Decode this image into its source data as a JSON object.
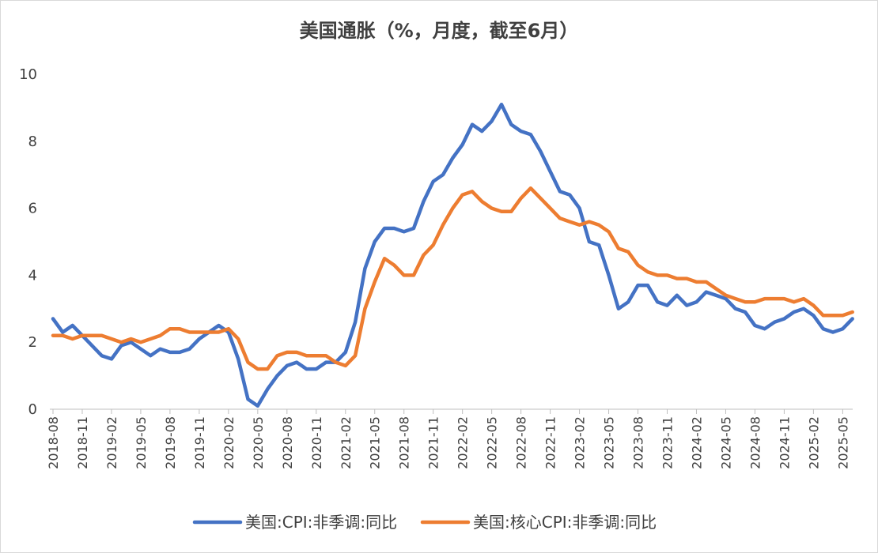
{
  "chart_data": {
    "type": "line",
    "title": "美国通胀（%，月度，截至6月）",
    "xlabel": "",
    "ylabel": "",
    "ylim": [
      0,
      10
    ],
    "yticks": [
      "0",
      "2",
      "4",
      "6",
      "8",
      "10"
    ],
    "x_start": "2018-08",
    "x_end": "2025-06",
    "xtick_labels": [
      "2018-08",
      "2018-11",
      "2019-02",
      "2019-05",
      "2019-08",
      "2019-11",
      "2020-02",
      "2020-05",
      "2020-08",
      "2020-11",
      "2021-02",
      "2021-05",
      "2021-08",
      "2021-11",
      "2022-02",
      "2022-05",
      "2022-08",
      "2022-11",
      "2023-02",
      "2023-05",
      "2023-08",
      "2023-11",
      "2024-02",
      "2024-05",
      "2024-08",
      "2024-11",
      "2025-02",
      "2025-05"
    ],
    "legend_position": "bottom",
    "series": [
      {
        "name": "美国:CPI:非季调:同比",
        "color": "#4472C4",
        "values": [
          2.7,
          2.3,
          2.5,
          2.2,
          1.9,
          1.6,
          1.5,
          1.9,
          2.0,
          1.8,
          1.6,
          1.8,
          1.7,
          1.7,
          1.8,
          2.1,
          2.3,
          2.5,
          2.3,
          1.5,
          0.3,
          0.1,
          0.6,
          1.0,
          1.3,
          1.4,
          1.2,
          1.2,
          1.4,
          1.4,
          1.7,
          2.6,
          4.2,
          5.0,
          5.4,
          5.4,
          5.3,
          5.4,
          6.2,
          6.8,
          7.0,
          7.5,
          7.9,
          8.5,
          8.3,
          8.6,
          9.1,
          8.5,
          8.3,
          8.2,
          7.7,
          7.1,
          6.5,
          6.4,
          6.0,
          5.0,
          4.9,
          4.0,
          3.0,
          3.2,
          3.7,
          3.7,
          3.2,
          3.1,
          3.4,
          3.1,
          3.2,
          3.5,
          3.4,
          3.3,
          3.0,
          2.9,
          2.5,
          2.4,
          2.6,
          2.7,
          2.9,
          3.0,
          2.8,
          2.4,
          2.3,
          2.4,
          2.7
        ]
      },
      {
        "name": "美国:核心CPI:非季调:同比",
        "color": "#ED7D31",
        "values": [
          2.2,
          2.2,
          2.1,
          2.2,
          2.2,
          2.2,
          2.1,
          2.0,
          2.1,
          2.0,
          2.1,
          2.2,
          2.4,
          2.4,
          2.3,
          2.3,
          2.3,
          2.3,
          2.4,
          2.1,
          1.4,
          1.2,
          1.2,
          1.6,
          1.7,
          1.7,
          1.6,
          1.6,
          1.6,
          1.4,
          1.3,
          1.6,
          3.0,
          3.8,
          4.5,
          4.3,
          4.0,
          4.0,
          4.6,
          4.9,
          5.5,
          6.0,
          6.4,
          6.5,
          6.2,
          6.0,
          5.9,
          5.9,
          6.3,
          6.6,
          6.3,
          6.0,
          5.7,
          5.6,
          5.5,
          5.6,
          5.5,
          5.3,
          4.8,
          4.7,
          4.3,
          4.1,
          4.0,
          4.0,
          3.9,
          3.9,
          3.8,
          3.8,
          3.6,
          3.4,
          3.3,
          3.2,
          3.2,
          3.3,
          3.3,
          3.3,
          3.2,
          3.3,
          3.1,
          2.8,
          2.8,
          2.8,
          2.9
        ]
      }
    ]
  }
}
